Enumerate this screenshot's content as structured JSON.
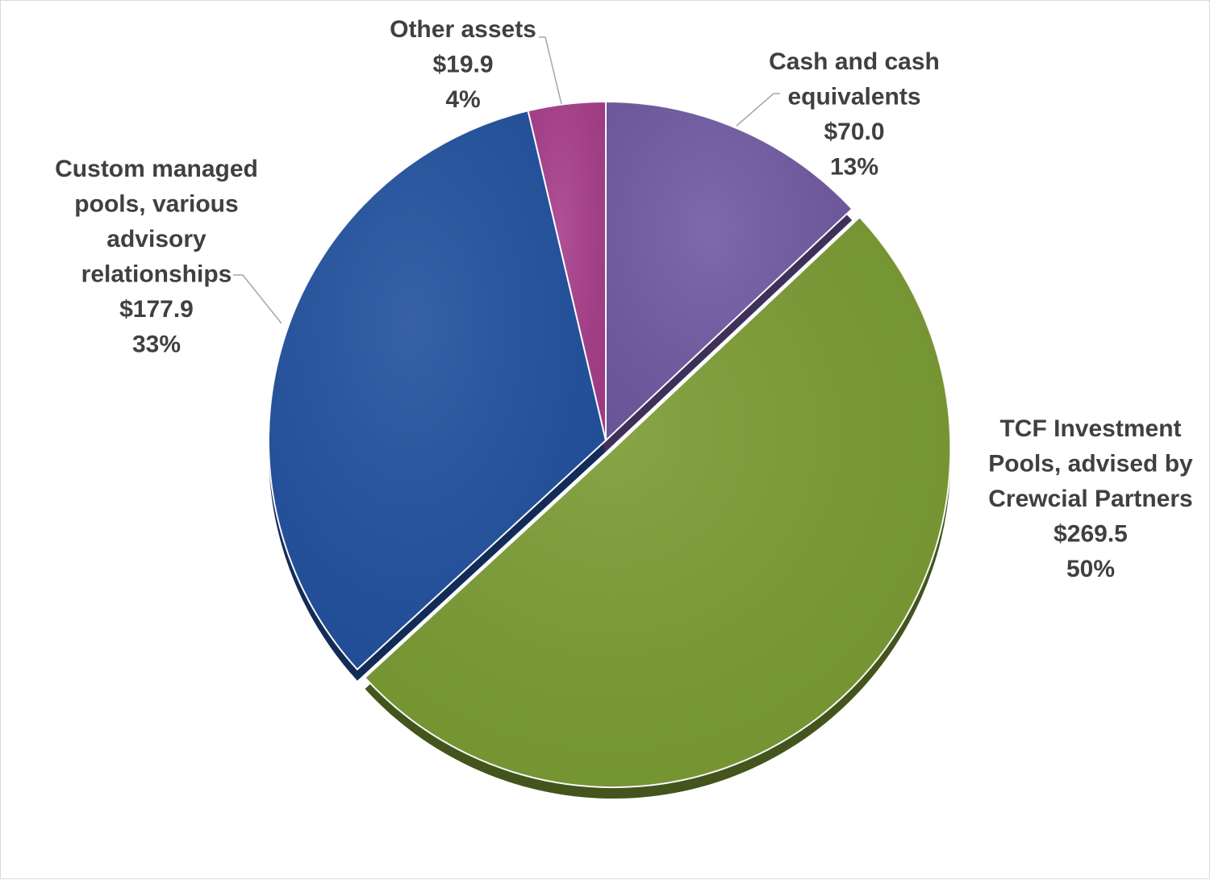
{
  "chart_data": {
    "type": "pie",
    "title": "",
    "slices": [
      {
        "name": "Cash and cash equivalents",
        "label_lines": [
          "Cash and cash",
          "equivalents"
        ],
        "value_label": "$70.0",
        "value": 70.0,
        "percent_label": "13%",
        "color": "#7059A2"
      },
      {
        "name": "TCF Investment Pools, advised by Crewcial Partners",
        "label_lines": [
          "TCF Investment",
          "Pools, advised by",
          "Crewcial Partners"
        ],
        "value_label": "$269.5",
        "value": 269.5,
        "percent_label": "50%",
        "color": "#7A9B32"
      },
      {
        "name": "Custom managed pools, various advisory relationships",
        "label_lines": [
          "Custom managed",
          "pools, various",
          "advisory",
          "relationships"
        ],
        "value_label": "$177.9",
        "value": 177.9,
        "percent_label": "33%",
        "color": "#20509E"
      },
      {
        "name": "Other assets",
        "label_lines": [
          "Other assets"
        ],
        "value_label": "$19.9",
        "value": 19.9,
        "percent_label": "4%",
        "color": "#A73D8A"
      }
    ],
    "legend": "none",
    "data_labels": "outside"
  }
}
